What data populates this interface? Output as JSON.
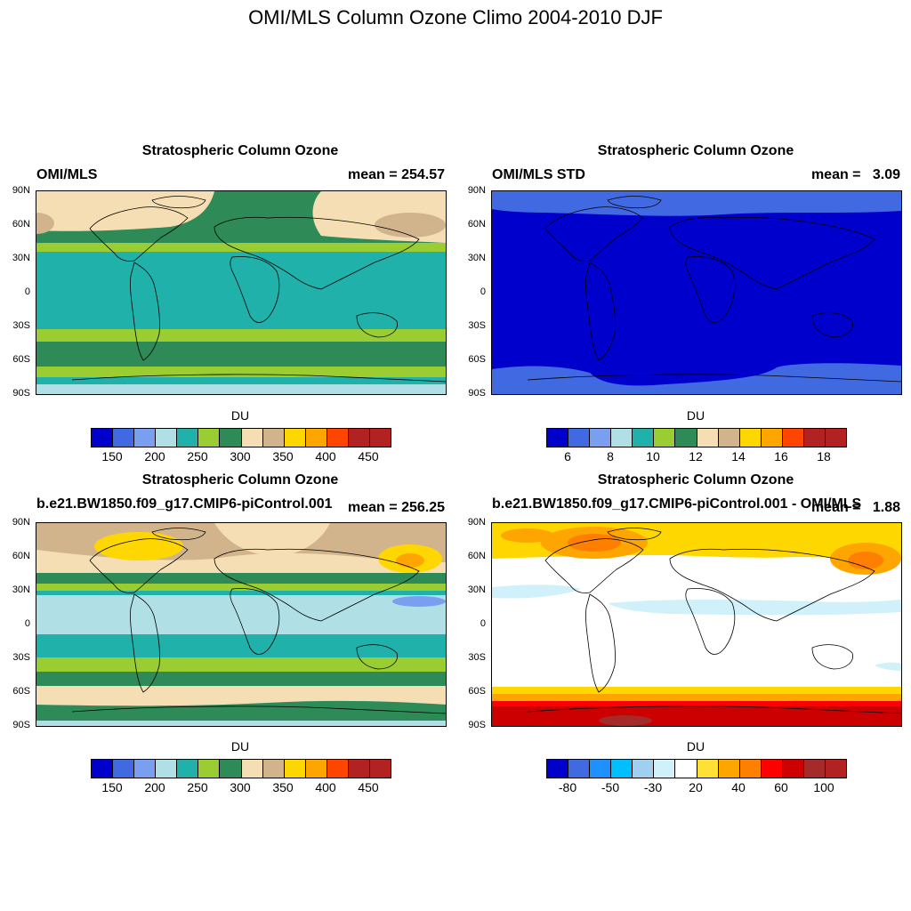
{
  "main_title": "OMI/MLS Column Ozone Climo 2004-2010 DJF",
  "lat_ticks": [
    "90N",
    "60N",
    "30N",
    "0",
    "30S",
    "60S",
    "90S"
  ],
  "panels": [
    {
      "title": "Stratospheric Column Ozone",
      "left_label": "OMI/MLS",
      "right_label": "mean = 254.57",
      "units": "DU",
      "colorbar": {
        "colors": [
          "#0000cd",
          "#4169e1",
          "#7b9ff0",
          "#b0e0e6",
          "#20b2aa",
          "#9acd32",
          "#2e8b57",
          "#f5deb3",
          "#d2b48c",
          "#ffd700",
          "#ffa500",
          "#ff4500",
          "#b22222",
          "#b22222"
        ],
        "labels": [
          "150",
          "200",
          "250",
          "300",
          "350",
          "400",
          "450"
        ]
      },
      "bands": [
        {
          "color": "#20b2aa"
        },
        {
          "color": "#2e8b57"
        },
        {
          "color": "#9acd32"
        },
        {
          "color": "#20b2aa"
        },
        {
          "color": "#9acd32"
        },
        {
          "color": "#2e8b57"
        },
        {
          "color": "#9acd32"
        },
        {
          "color": "#20b2aa"
        },
        {
          "color": "#b0e0e6"
        }
      ]
    },
    {
      "title": "Stratospheric Column Ozone",
      "left_label": "OMI/MLS STD",
      "right_label": "mean =   3.09",
      "units": "DU",
      "colorbar": {
        "colors": [
          "#0000cd",
          "#4169e1",
          "#7b9ff0",
          "#b0e0e6",
          "#20b2aa",
          "#9acd32",
          "#2e8b57",
          "#f5deb3",
          "#d2b48c",
          "#ffd700",
          "#ffa500",
          "#ff4500",
          "#b22222",
          "#b22222"
        ],
        "labels": [
          "6",
          "8",
          "10",
          "12",
          "14",
          "16",
          "18"
        ]
      },
      "bands": [
        {
          "color": "#4169e1"
        },
        {
          "color": "#0000cd"
        },
        {
          "color": "#4169e1"
        }
      ]
    },
    {
      "title": "Stratospheric Column Ozone",
      "left_label": "b.e21.BW1850.f09_g17.CMIP6-piControl.001",
      "right_label": "mean = 256.25",
      "units": "DU",
      "colorbar": {
        "colors": [
          "#0000cd",
          "#4169e1",
          "#7b9ff0",
          "#b0e0e6",
          "#20b2aa",
          "#9acd32",
          "#2e8b57",
          "#f5deb3",
          "#d2b48c",
          "#ffd700",
          "#ffa500",
          "#ff4500",
          "#b22222",
          "#b22222"
        ],
        "labels": [
          "150",
          "200",
          "250",
          "300",
          "350",
          "400",
          "450"
        ]
      },
      "bands": [
        {
          "color": "#d2b48c"
        },
        {
          "color": "#f5deb3"
        },
        {
          "color": "#2e8b57"
        },
        {
          "color": "#9acd32"
        },
        {
          "color": "#b0e0e6"
        },
        {
          "color": "#20b2aa"
        },
        {
          "color": "#9acd32"
        },
        {
          "color": "#2e8b57"
        },
        {
          "color": "#f5deb3"
        },
        {
          "color": "#2e8b57"
        },
        {
          "color": "#b0e0e6"
        }
      ]
    },
    {
      "title": "Stratospheric Column Ozone",
      "left_label": "b.e21.BW1850.f09_g17.CMIP6-piControl.001 - OMI/MLS",
      "right_label": "mean =   1.88",
      "units": "DU",
      "colorbar": {
        "colors": [
          "#0000cd",
          "#4169e1",
          "#1e90ff",
          "#00bfff",
          "#a0cff0",
          "#d0f0fa",
          "#ffffff",
          "#ffe135",
          "#ffa500",
          "#ff7f00",
          "#ff0000",
          "#cc0000",
          "#a52a2a",
          "#b22222"
        ],
        "labels": [
          "-80",
          "-50",
          "-30",
          "20",
          "40",
          "60",
          "100"
        ]
      },
      "bands": [
        {
          "color": "#ffd700"
        },
        {
          "color": "#ffffff"
        },
        {
          "color": "#ffd700"
        },
        {
          "color": "#ffa500"
        },
        {
          "color": "#ff0000"
        },
        {
          "color": "#cc0000"
        }
      ]
    }
  ]
}
